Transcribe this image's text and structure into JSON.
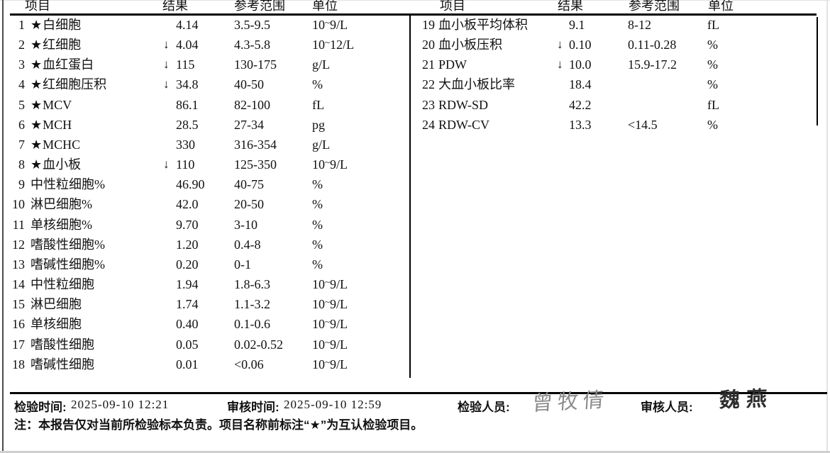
{
  "report": {
    "headers": {
      "item": "项目",
      "result": "结果",
      "range": "参考范围",
      "unit": "单位"
    },
    "icons": {
      "star": "★",
      "low_arrow": "↓"
    },
    "left_rows": [
      {
        "no": "1",
        "star": true,
        "name": "白细胞",
        "flag": "",
        "result": "4.14",
        "range": "3.5-9.5",
        "unit": "10~9/L"
      },
      {
        "no": "2",
        "star": true,
        "name": "红细胞",
        "flag": "low",
        "result": "4.04",
        "range": "4.3-5.8",
        "unit": "10~12/L"
      },
      {
        "no": "3",
        "star": true,
        "name": "血红蛋白",
        "flag": "low",
        "result": "115",
        "range": "130-175",
        "unit": "g/L"
      },
      {
        "no": "4",
        "star": true,
        "name": "红细胞压积",
        "flag": "low",
        "result": "34.8",
        "range": "40-50",
        "unit": "%"
      },
      {
        "no": "5",
        "star": true,
        "name": "MCV",
        "flag": "",
        "result": "86.1",
        "range": "82-100",
        "unit": "fL"
      },
      {
        "no": "6",
        "star": true,
        "name": "MCH",
        "flag": "",
        "result": "28.5",
        "range": "27-34",
        "unit": "pg"
      },
      {
        "no": "7",
        "star": true,
        "name": "MCHC",
        "flag": "",
        "result": "330",
        "range": "316-354",
        "unit": "g/L"
      },
      {
        "no": "8",
        "star": true,
        "name": "血小板",
        "flag": "low",
        "result": "110",
        "range": "125-350",
        "unit": "10~9/L"
      },
      {
        "no": "9",
        "star": false,
        "name": "中性粒细胞%",
        "flag": "",
        "result": "46.90",
        "range": "40-75",
        "unit": "%"
      },
      {
        "no": "10",
        "star": false,
        "name": "淋巴细胞%",
        "flag": "",
        "result": "42.0",
        "range": "20-50",
        "unit": "%"
      },
      {
        "no": "11",
        "star": false,
        "name": "单核细胞%",
        "flag": "",
        "result": "9.70",
        "range": "3-10",
        "unit": "%"
      },
      {
        "no": "12",
        "star": false,
        "name": "嗜酸性细胞%",
        "flag": "",
        "result": "1.20",
        "range": "0.4-8",
        "unit": "%"
      },
      {
        "no": "13",
        "star": false,
        "name": "嗜碱性细胞%",
        "flag": "",
        "result": "0.20",
        "range": "0-1",
        "unit": "%"
      },
      {
        "no": "14",
        "star": false,
        "name": "中性粒细胞",
        "flag": "",
        "result": "1.94",
        "range": "1.8-6.3",
        "unit": "10~9/L"
      },
      {
        "no": "15",
        "star": false,
        "name": "淋巴细胞",
        "flag": "",
        "result": "1.74",
        "range": "1.1-3.2",
        "unit": "10~9/L"
      },
      {
        "no": "16",
        "star": false,
        "name": "单核细胞",
        "flag": "",
        "result": "0.40",
        "range": "0.1-0.6",
        "unit": "10~9/L"
      },
      {
        "no": "17",
        "star": false,
        "name": "嗜酸性细胞",
        "flag": "",
        "result": "0.05",
        "range": "0.02-0.52",
        "unit": "10~9/L"
      },
      {
        "no": "18",
        "star": false,
        "name": "嗜碱性细胞",
        "flag": "",
        "result": "0.01",
        "range": "<0.06",
        "unit": "10~9/L"
      }
    ],
    "right_rows": [
      {
        "no": "19",
        "star": false,
        "name": "血小板平均体积",
        "flag": "",
        "result": "9.1",
        "range": "8-12",
        "unit": "fL"
      },
      {
        "no": "20",
        "star": false,
        "name": "血小板压积",
        "flag": "low",
        "result": "0.10",
        "range": "0.11-0.28",
        "unit": "%"
      },
      {
        "no": "21",
        "star": false,
        "name": "PDW",
        "flag": "low",
        "result": "10.0",
        "range": "15.9-17.2",
        "unit": "%"
      },
      {
        "no": "22",
        "star": false,
        "name": "大血小板比率",
        "flag": "",
        "result": "18.4",
        "range": "",
        "unit": "%"
      },
      {
        "no": "23",
        "star": false,
        "name": "RDW-SD",
        "flag": "",
        "result": "42.2",
        "range": "",
        "unit": "fL"
      },
      {
        "no": "24",
        "star": false,
        "name": "RDW-CV",
        "flag": "",
        "result": "13.3",
        "range": "<14.5",
        "unit": "%"
      }
    ],
    "footer": {
      "test_time_label": "检验时间:",
      "test_time": "2025-09-10 12:21",
      "review_time_label": "审核时间:",
      "review_time": "2025-09-10 12:59",
      "tester_label": "检验人员:",
      "tester_signature": "曾牧倩",
      "reviewer_label": "审核人员:",
      "reviewer_signature": "魏燕",
      "note": "注：本报告仅对当前所检验标本负责。项目名称前标注“★”为互认检验项目。"
    },
    "colors": {
      "ink": "#111111",
      "rule": "#000000",
      "signature_gray": "#8b8b8b"
    }
  }
}
